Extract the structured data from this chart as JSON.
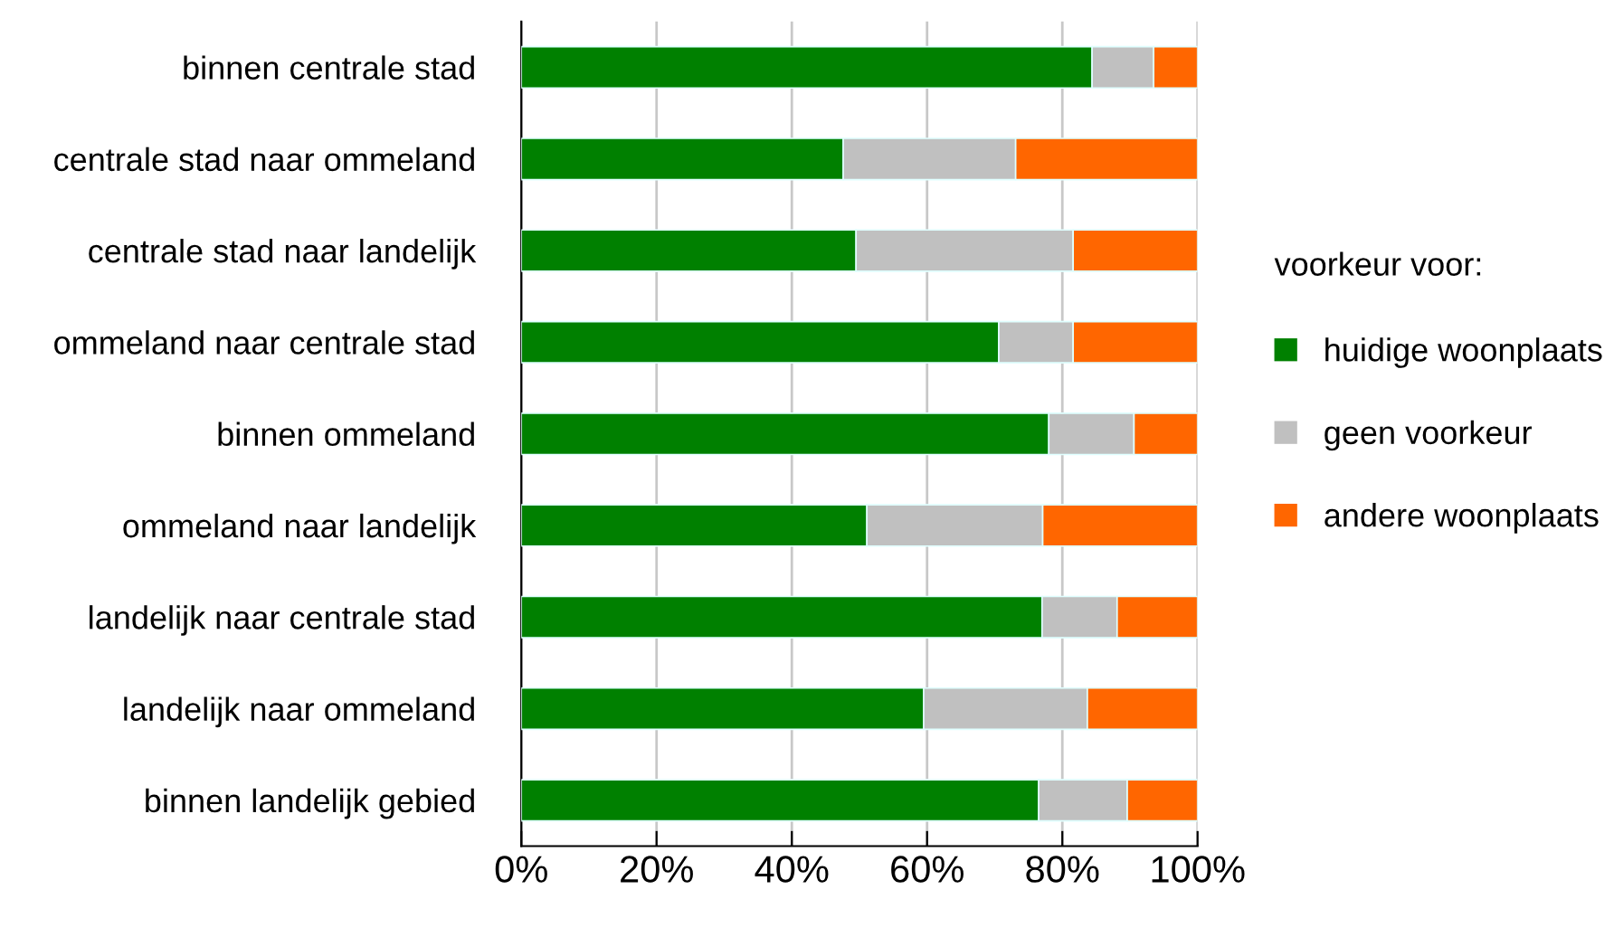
{
  "chart_data": {
    "type": "bar",
    "orientation": "horizontal",
    "stacked": true,
    "categories": [
      "binnen centrale stad",
      "centrale stad naar ommeland",
      "centrale stad naar landelijk",
      "ommeland naar centrale stad",
      "binnen ommeland",
      "ommeland naar landelijk",
      "landelijk naar centrale stad",
      "landelijk naar ommeland",
      "binnen landelijk gebied"
    ],
    "series": [
      {
        "name": "huidige woonplaats",
        "color": "#008000",
        "values": [
          84.4,
          47.6,
          49.5,
          70.6,
          78.0,
          51.1,
          77.0,
          59.5,
          76.5
        ]
      },
      {
        "name": "geen voorkeur",
        "color": "#c0c0c0",
        "values": [
          9.1,
          25.5,
          32.1,
          11.0,
          12.6,
          26.0,
          11.1,
          24.2,
          13.1
        ]
      },
      {
        "name": "andere woonplaats",
        "color": "#ff6600",
        "values": [
          6.5,
          26.9,
          18.4,
          18.4,
          9.4,
          22.9,
          11.9,
          16.3,
          10.4
        ]
      }
    ],
    "legend_title": "voorkeur voor:",
    "legend": "right",
    "xlim": [
      0,
      100
    ],
    "xticks": [
      {
        "value": 0,
        "label": "0%"
      },
      {
        "value": 20,
        "label": "20%"
      },
      {
        "value": 40,
        "label": "40%"
      },
      {
        "value": 60,
        "label": "60%"
      },
      {
        "value": 80,
        "label": "80%"
      },
      {
        "value": 100,
        "label": "100%"
      }
    ],
    "grid": "x"
  }
}
